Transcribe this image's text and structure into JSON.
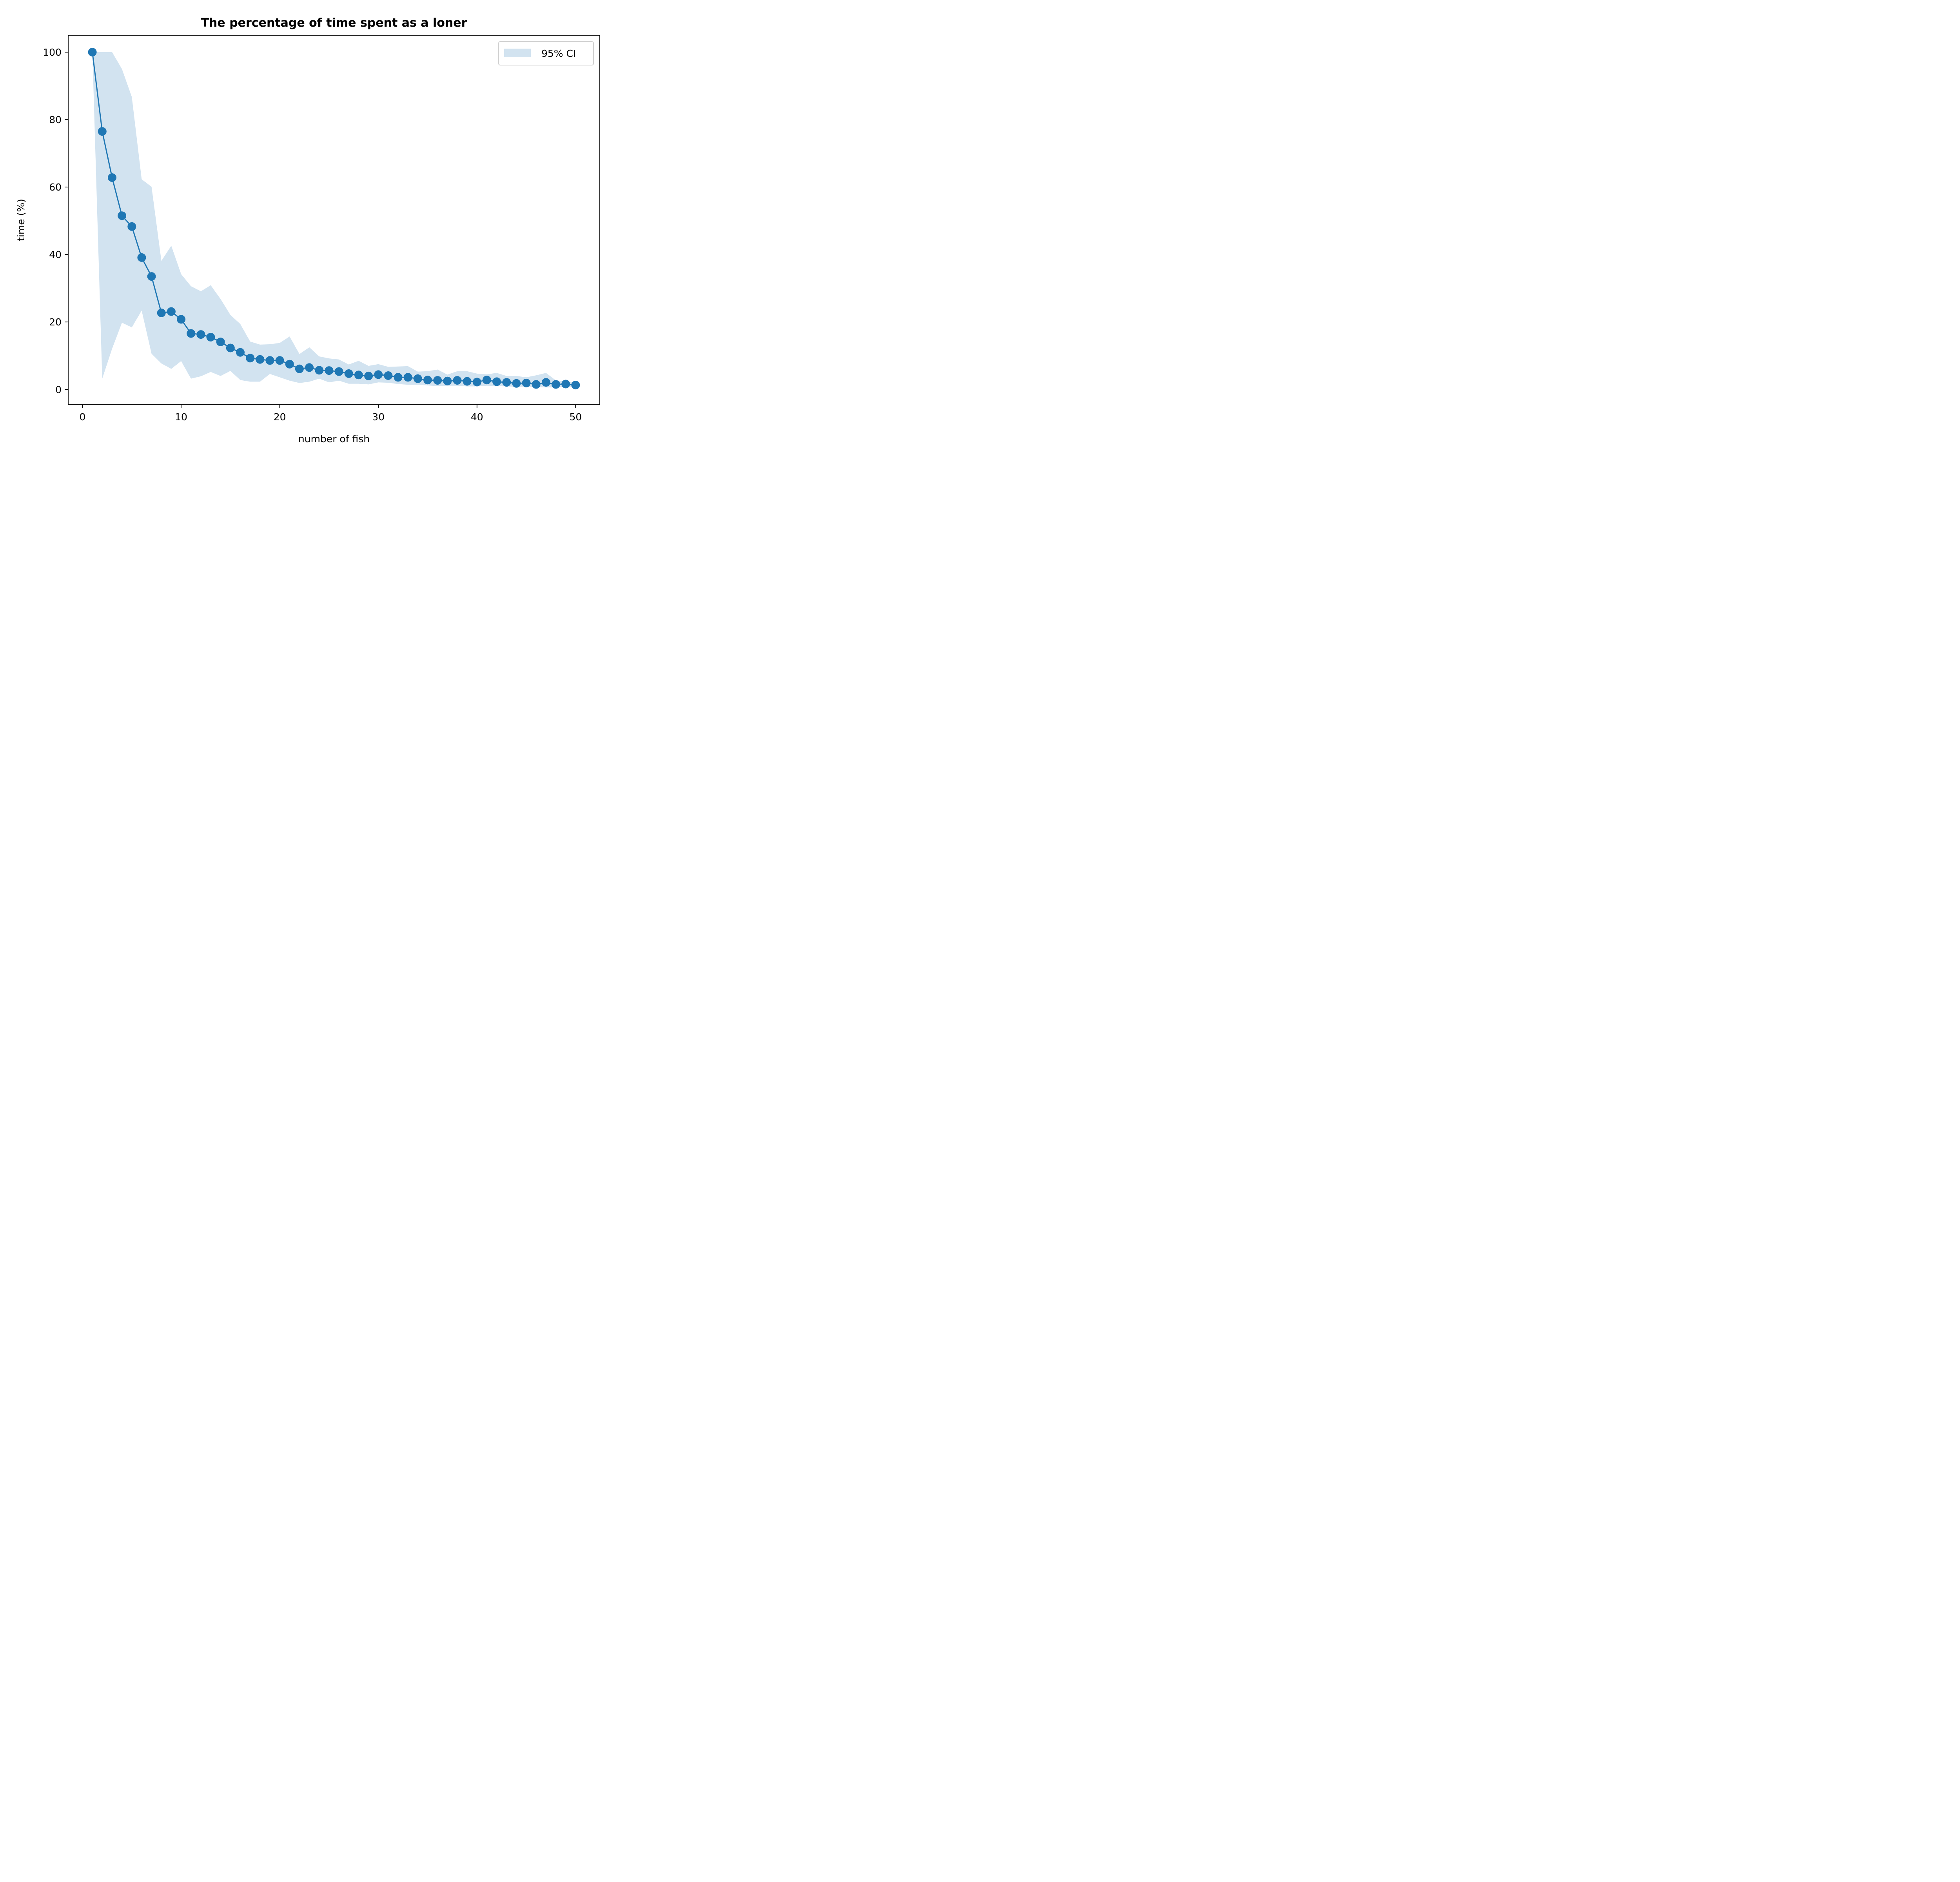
{
  "chart_data": {
    "type": "line",
    "title": "The percentage of time spent as a loner",
    "xlabel": "number of fish",
    "ylabel": "time (%)",
    "xlim": [
      -1.45,
      52.45
    ],
    "ylim": [
      -4.5,
      105
    ],
    "xticks": [
      0,
      10,
      20,
      30,
      40,
      50
    ],
    "yticks": [
      0,
      20,
      40,
      60,
      80,
      100
    ],
    "grid": false,
    "legend": {
      "placement": "top-right",
      "entries": [
        "95% CI"
      ]
    },
    "colors": {
      "line": "#1f77b4",
      "ci_fill": "#d2e3f0"
    },
    "x": [
      1,
      2,
      3,
      4,
      5,
      6,
      7,
      8,
      9,
      10,
      11,
      12,
      13,
      14,
      15,
      16,
      17,
      18,
      19,
      20,
      21,
      22,
      23,
      24,
      25,
      26,
      27,
      28,
      29,
      30,
      31,
      32,
      33,
      34,
      35,
      36,
      37,
      38,
      39,
      40,
      41,
      42,
      43,
      44,
      45,
      46,
      47,
      48,
      49,
      50
    ],
    "series": [
      {
        "values": [
          100,
          76.5,
          62.8,
          51.5,
          48.3,
          39.1,
          33.5,
          22.7,
          23.1,
          20.8,
          16.6,
          16.3,
          15.5,
          14.1,
          12.3,
          11.0,
          9.3,
          8.9,
          8.6,
          8.6,
          7.5,
          6.1,
          6.5,
          5.7,
          5.6,
          5.3,
          4.7,
          4.3,
          4.0,
          4.4,
          4.1,
          3.6,
          3.6,
          3.2,
          2.8,
          2.7,
          2.5,
          2.7,
          2.4,
          2.2,
          2.8,
          2.3,
          2.1,
          1.8,
          1.9,
          1.5,
          2.1,
          1.5,
          1.6,
          1.3
        ],
        "ci_upper": [
          100,
          100,
          100,
          95,
          86.7,
          62.3,
          60.1,
          38.1,
          42.6,
          34.2,
          30.6,
          29.1,
          30.9,
          26.8,
          22.1,
          19.4,
          14.2,
          13.3,
          13.4,
          13.8,
          15.7,
          10.5,
          12.5,
          9.8,
          9.2,
          8.9,
          7.4,
          8.5,
          7.0,
          7.5,
          6.7,
          6.8,
          6.9,
          5.3,
          5.4,
          5.9,
          4.4,
          5.4,
          5.4,
          4.7,
          4.5,
          4.9,
          4.0,
          4.0,
          3.6,
          4.2,
          4.9,
          2.7,
          2.4,
          2.0
        ],
        "ci_lower": [
          100,
          3.2,
          12.1,
          19.8,
          18.4,
          23.4,
          10.6,
          7.7,
          6.1,
          8.4,
          3.2,
          3.9,
          5.2,
          4.0,
          5.5,
          2.8,
          2.3,
          2.3,
          4.6,
          3.6,
          2.6,
          1.9,
          2.3,
          3.2,
          2.1,
          2.6,
          1.7,
          1.7,
          1.5,
          2.1,
          2.0,
          1.6,
          1.4,
          1.4,
          1.2,
          1.0,
          1.1,
          1.1,
          0.9,
          0.9,
          1.1,
          1.0,
          0.9,
          0.8,
          0.8,
          0.7,
          0.6,
          0.6,
          0.8,
          0.7
        ]
      }
    ]
  }
}
